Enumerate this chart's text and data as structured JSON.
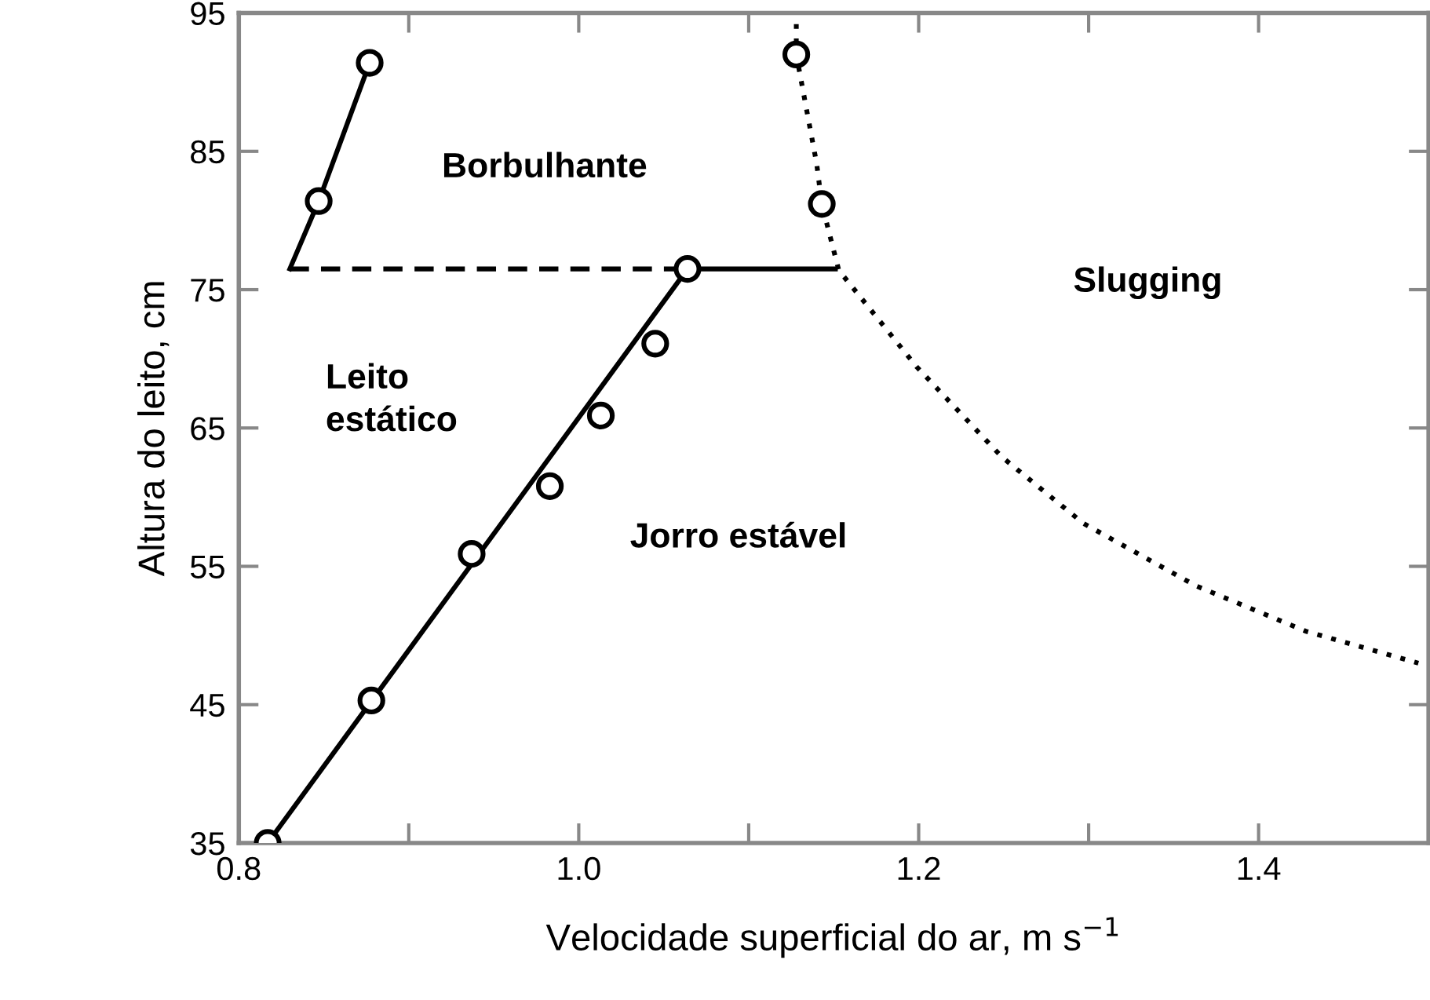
{
  "chart_data": {
    "type": "line",
    "xlabel": "Velocidade superficial do ar, m s$^{−1}$",
    "ylabel": "Altura do leito, cm",
    "xlim": [
      0.8,
      1.5
    ],
    "ylim": [
      35,
      95
    ],
    "xticks": [
      {
        "value": 0.8,
        "label": "0.8"
      },
      {
        "value": 0.9,
        "label": null
      },
      {
        "value": 1.0,
        "label": "1.0"
      },
      {
        "value": 1.1,
        "label": null
      },
      {
        "value": 1.2,
        "label": "1.2"
      },
      {
        "value": 1.3,
        "label": null
      },
      {
        "value": 1.4,
        "label": "1.4"
      }
    ],
    "yticks": [
      35,
      45,
      55,
      65,
      75,
      85,
      95
    ],
    "grid": false,
    "series": [
      {
        "color": "#000000",
        "line_style": "solid",
        "marker": "none",
        "x": [
          0.83,
          0.847,
          0.877
        ],
        "values": [
          76.5,
          81.4,
          91.4
        ]
      },
      {
        "color": "#000000",
        "line_style": "dashed",
        "marker": "none",
        "x": [
          0.83,
          1.064
        ],
        "values": [
          76.5,
          76.5
        ]
      },
      {
        "color": "#000000",
        "line_style": "solid",
        "marker": "none",
        "x": [
          0.817,
          1.064,
          1.151
        ],
        "values": [
          35,
          76.5,
          76.5
        ]
      },
      {
        "color": "#000000",
        "line_style": "dotted",
        "marker": "none",
        "x": [
          1.128,
          1.128,
          1.14,
          1.143,
          1.153,
          1.199,
          1.249,
          1.297,
          1.363,
          1.428,
          1.494
        ],
        "values": [
          94.2,
          92.0,
          84.1,
          81.2,
          76.4,
          69.4,
          62.9,
          58.1,
          53.6,
          50.3,
          48.0
        ]
      },
      {
        "type": "scatter",
        "color": "#000000",
        "marker": "circle",
        "x": [
          0.847,
          0.877,
          0.817,
          0.878,
          0.937,
          0.983,
          1.013,
          1.045,
          1.064,
          1.128,
          1.143
        ],
        "values": [
          81.4,
          91.4,
          35,
          45.3,
          55.9,
          60.8,
          65.9,
          71.1,
          76.5,
          92.0,
          81.2
        ]
      }
    ],
    "annotations": [
      "Borbulhante",
      "Slugging",
      "Leito\nestático",
      "Jorro estável"
    ]
  }
}
